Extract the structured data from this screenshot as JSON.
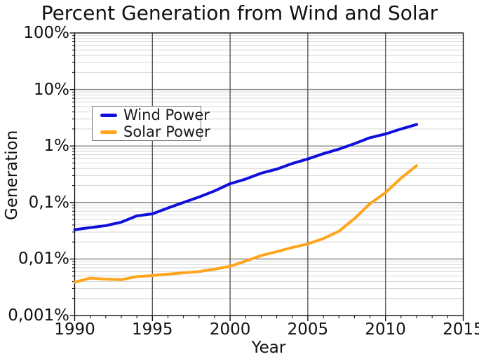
{
  "page": {
    "background": "#ffffff"
  },
  "chart_data": {
    "type": "line",
    "title": "Percent Generation from Wind and Solar",
    "xlabel": "Year",
    "ylabel": "Generation",
    "xlim": [
      1990,
      2015
    ],
    "ylim_percent_log": [
      0.001,
      100
    ],
    "y_scale": "log",
    "decimal_separator": ",",
    "grid": {
      "horizontal_minor": true,
      "horizontal_major": true,
      "vertical_major": true,
      "vertical_minor": false
    },
    "x_tick_labels": [
      "1990",
      "1995",
      "2000",
      "2005",
      "2010",
      "2015"
    ],
    "x_major_gridlines": [
      1995,
      2000,
      2005,
      2010
    ],
    "y_tick_labels": [
      "100%",
      "10%",
      "1%",
      "0,1%",
      "0,01%",
      "0,001%"
    ],
    "y_tick_values": [
      100,
      10,
      1,
      0.1,
      0.01,
      0.001
    ],
    "x": [
      1990,
      1991,
      1992,
      1993,
      1994,
      1995,
      1996,
      1997,
      1998,
      1999,
      2000,
      2001,
      2002,
      2003,
      2004,
      2005,
      2006,
      2007,
      2008,
      2009,
      2010,
      2011,
      2012
    ],
    "series": [
      {
        "name": "Wind Power",
        "color": "#1010dd",
        "values": [
          0.033,
          0.036,
          0.039,
          0.045,
          0.058,
          0.063,
          0.08,
          0.1,
          0.125,
          0.16,
          0.215,
          0.26,
          0.33,
          0.39,
          0.49,
          0.59,
          0.73,
          0.88,
          1.1,
          1.4,
          1.63,
          2.0,
          2.4
        ]
      },
      {
        "name": "Solar Power",
        "color": "#ffa51e",
        "values": [
          0.0039,
          0.0046,
          0.0044,
          0.0043,
          0.0049,
          0.0051,
          0.0054,
          0.0057,
          0.006,
          0.0066,
          0.0074,
          0.0092,
          0.0115,
          0.0135,
          0.016,
          0.0185,
          0.023,
          0.031,
          0.052,
          0.095,
          0.15,
          0.27,
          0.45
        ]
      }
    ],
    "legend": {
      "position": "upper left",
      "entries": [
        "Wind Power",
        "Solar Power"
      ]
    },
    "colors": {
      "grid_minor": "#d6d6d6",
      "grid_major_h": "#8c8c8c",
      "grid_major_v": "#4d4d4d",
      "axis": "#000000"
    }
  }
}
